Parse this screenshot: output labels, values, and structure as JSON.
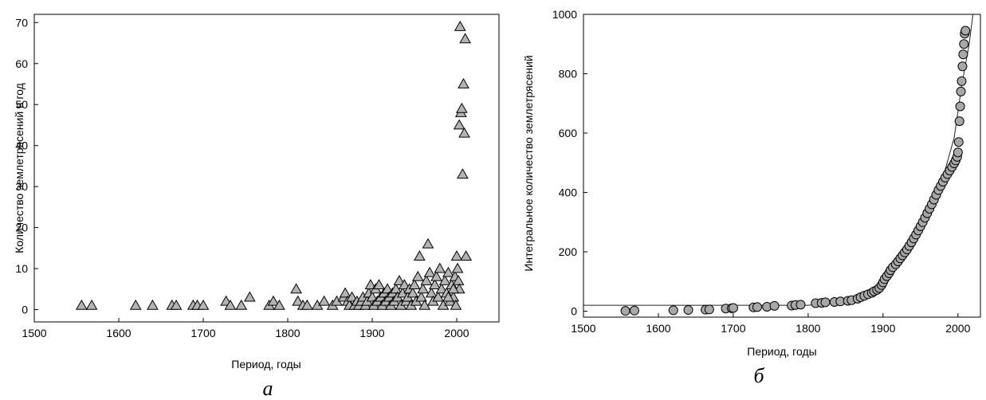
{
  "chart_data": [
    {
      "type": "scatter",
      "panel_label": "а",
      "xlabel": "Период, годы",
      "ylabel": "Количество землетрясений в год",
      "xlim": [
        1500,
        2050
      ],
      "ylim": [
        -3,
        72
      ],
      "x_ticks": [
        1500,
        1600,
        1700,
        1800,
        1900,
        2000
      ],
      "y_ticks": [
        0,
        10,
        20,
        30,
        40,
        50,
        60,
        70
      ],
      "marker": "triangle",
      "marker_color": "#b4b4b4",
      "grid": false,
      "points": [
        [
          1556,
          1
        ],
        [
          1568,
          1
        ],
        [
          1620,
          1
        ],
        [
          1640,
          1
        ],
        [
          1663,
          1
        ],
        [
          1668,
          1
        ],
        [
          1688,
          1
        ],
        [
          1693,
          1
        ],
        [
          1700,
          1
        ],
        [
          1727,
          2
        ],
        [
          1732,
          1
        ],
        [
          1745,
          1
        ],
        [
          1755,
          3
        ],
        [
          1778,
          1
        ],
        [
          1783,
          2
        ],
        [
          1790,
          1
        ],
        [
          1810,
          5
        ],
        [
          1812,
          2
        ],
        [
          1818,
          1
        ],
        [
          1823,
          1
        ],
        [
          1835,
          1
        ],
        [
          1843,
          2
        ],
        [
          1853,
          1
        ],
        [
          1858,
          2
        ],
        [
          1866,
          3
        ],
        [
          1868,
          4
        ],
        [
          1871,
          2
        ],
        [
          1873,
          1
        ],
        [
          1876,
          3
        ],
        [
          1879,
          1
        ],
        [
          1882,
          2
        ],
        [
          1884,
          1
        ],
        [
          1887,
          2
        ],
        [
          1889,
          3
        ],
        [
          1892,
          1
        ],
        [
          1894,
          2
        ],
        [
          1896,
          4
        ],
        [
          1898,
          6
        ],
        [
          1900,
          3
        ],
        [
          1902,
          1
        ],
        [
          1904,
          5
        ],
        [
          1906,
          2
        ],
        [
          1908,
          6
        ],
        [
          1910,
          3
        ],
        [
          1912,
          1
        ],
        [
          1914,
          4
        ],
        [
          1916,
          2
        ],
        [
          1918,
          5
        ],
        [
          1920,
          3
        ],
        [
          1922,
          1
        ],
        [
          1924,
          4
        ],
        [
          1926,
          2
        ],
        [
          1928,
          5
        ],
        [
          1930,
          3
        ],
        [
          1932,
          7
        ],
        [
          1934,
          1
        ],
        [
          1936,
          4
        ],
        [
          1938,
          6
        ],
        [
          1940,
          2
        ],
        [
          1942,
          3
        ],
        [
          1944,
          5
        ],
        [
          1946,
          1
        ],
        [
          1948,
          4
        ],
        [
          1950,
          6
        ],
        [
          1952,
          2
        ],
        [
          1954,
          8
        ],
        [
          1956,
          13
        ],
        [
          1958,
          3
        ],
        [
          1960,
          5
        ],
        [
          1962,
          1
        ],
        [
          1964,
          7
        ],
        [
          1966,
          16
        ],
        [
          1968,
          9
        ],
        [
          1970,
          4
        ],
        [
          1972,
          2
        ],
        [
          1974,
          6
        ],
        [
          1976,
          8
        ],
        [
          1978,
          3
        ],
        [
          1980,
          10
        ],
        [
          1982,
          5
        ],
        [
          1984,
          1
        ],
        [
          1986,
          7
        ],
        [
          1988,
          4
        ],
        [
          1990,
          9
        ],
        [
          1992,
          2
        ],
        [
          1994,
          6
        ],
        [
          1996,
          3
        ],
        [
          1998,
          8
        ],
        [
          1999,
          1
        ],
        [
          2000,
          13
        ],
        [
          2001,
          10
        ],
        [
          2002,
          7
        ],
        [
          2003,
          45
        ],
        [
          2004,
          69
        ],
        [
          2005,
          48
        ],
        [
          2006,
          49
        ],
        [
          2007,
          33
        ],
        [
          2008,
          55
        ],
        [
          2009,
          43
        ],
        [
          2010,
          66
        ],
        [
          2011,
          13
        ],
        [
          2003,
          5
        ],
        [
          1996,
          5
        ],
        [
          1990,
          3
        ]
      ]
    },
    {
      "type": "scatter",
      "panel_label": "б",
      "xlabel": "Период, годы",
      "ylabel": "Интегральное количество землетрясений",
      "xlim": [
        1500,
        2030
      ],
      "ylim": [
        -20,
        1000
      ],
      "x_ticks": [
        1500,
        1600,
        1700,
        1800,
        1900,
        2000
      ],
      "y_ticks": [
        0,
        200,
        400,
        600,
        800,
        1000
      ],
      "marker": "circle",
      "marker_color": "#a8a8a8",
      "grid": false,
      "points": [
        [
          1556,
          1
        ],
        [
          1568,
          2
        ],
        [
          1620,
          3
        ],
        [
          1640,
          4
        ],
        [
          1663,
          5
        ],
        [
          1668,
          6
        ],
        [
          1690,
          9
        ],
        [
          1698,
          10
        ],
        [
          1700,
          11
        ],
        [
          1727,
          13
        ],
        [
          1732,
          14
        ],
        [
          1745,
          15
        ],
        [
          1755,
          18
        ],
        [
          1778,
          19
        ],
        [
          1783,
          21
        ],
        [
          1790,
          22
        ],
        [
          1810,
          27
        ],
        [
          1818,
          28
        ],
        [
          1823,
          30
        ],
        [
          1835,
          31
        ],
        [
          1843,
          33
        ],
        [
          1853,
          35
        ],
        [
          1858,
          37
        ],
        [
          1866,
          42
        ],
        [
          1870,
          47
        ],
        [
          1875,
          52
        ],
        [
          1880,
          57
        ],
        [
          1885,
          62
        ],
        [
          1888,
          67
        ],
        [
          1892,
          72
        ],
        [
          1895,
          78
        ],
        [
          1898,
          88
        ],
        [
          1900,
          97
        ],
        [
          1902,
          108
        ],
        [
          1905,
          118
        ],
        [
          1908,
          128
        ],
        [
          1910,
          138
        ],
        [
          1913,
          148
        ],
        [
          1917,
          158
        ],
        [
          1920,
          168
        ],
        [
          1923,
          178
        ],
        [
          1926,
          188
        ],
        [
          1929,
          198
        ],
        [
          1932,
          208
        ],
        [
          1935,
          220
        ],
        [
          1938,
          232
        ],
        [
          1941,
          245
        ],
        [
          1944,
          258
        ],
        [
          1947,
          272
        ],
        [
          1950,
          286
        ],
        [
          1953,
          300
        ],
        [
          1956,
          315
        ],
        [
          1959,
          330
        ],
        [
          1962,
          345
        ],
        [
          1965,
          360
        ],
        [
          1968,
          376
        ],
        [
          1971,
          392
        ],
        [
          1974,
          408
        ],
        [
          1977,
          422
        ],
        [
          1980,
          436
        ],
        [
          1983,
          450
        ],
        [
          1986,
          462
        ],
        [
          1989,
          474
        ],
        [
          1992,
          486
        ],
        [
          1995,
          498
        ],
        [
          1997,
          508
        ],
        [
          1999,
          520
        ],
        [
          2000,
          535
        ],
        [
          2001,
          570
        ],
        [
          2002,
          640
        ],
        [
          2003,
          690
        ],
        [
          2004,
          740
        ],
        [
          2005,
          775
        ],
        [
          2006,
          825
        ],
        [
          2007,
          865
        ],
        [
          2008,
          900
        ],
        [
          2009,
          935
        ],
        [
          2010,
          945
        ]
      ],
      "fit_line": [
        [
          1500,
          20
        ],
        [
          1800,
          20
        ],
        [
          1850,
          34
        ],
        [
          1880,
          58
        ],
        [
          1900,
          96
        ],
        [
          1920,
          164
        ],
        [
          1940,
          258
        ],
        [
          1960,
          348
        ],
        [
          1980,
          450
        ],
        [
          1995,
          585
        ],
        [
          2005,
          760
        ],
        [
          2015,
          900
        ],
        [
          2020,
          1000
        ]
      ]
    }
  ]
}
